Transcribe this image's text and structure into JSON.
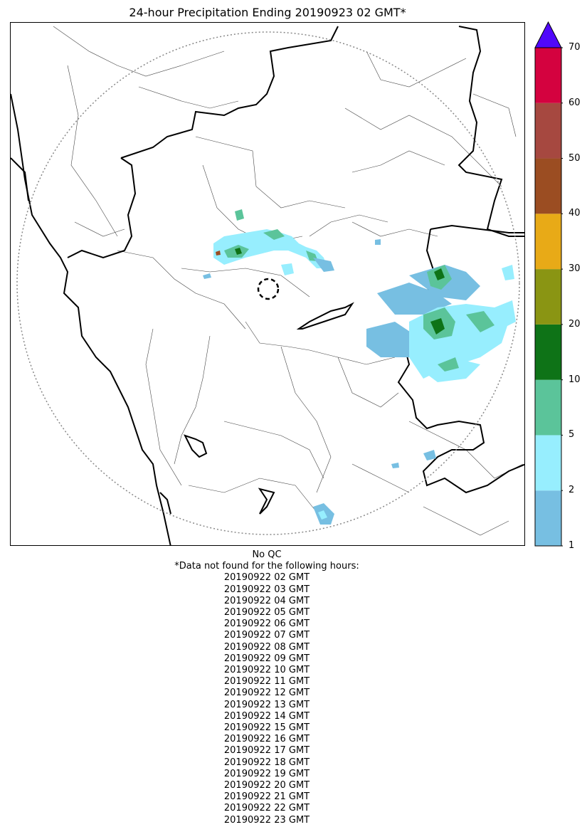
{
  "title": "24-hour Precipitation Ending 20190923 02 GMT*",
  "colorbar": {
    "levels": [
      {
        "value": 1,
        "label": "1",
        "color": "#77bfe2"
      },
      {
        "value": 2,
        "label": "2",
        "color": "#97eefe"
      },
      {
        "value": 5,
        "label": "5",
        "color": "#5bc49a"
      },
      {
        "value": 10,
        "label": "10",
        "color": "#0e7317"
      },
      {
        "value": 20,
        "label": "20",
        "color": "#8a9513"
      },
      {
        "value": 30,
        "label": "30",
        "color": "#e8aa17"
      },
      {
        "value": 40,
        "label": "40",
        "color": "#9b4d22"
      },
      {
        "value": 50,
        "label": "50",
        "color": "#a64840"
      },
      {
        "value": 60,
        "label": "60",
        "color": "#d4023f"
      },
      {
        "value": 70,
        "label": "70",
        "color": null
      }
    ],
    "extend_max_color": "#5008fb"
  },
  "notes": {
    "qc": "No QC",
    "missing_header": "*Data not found for the following hours:",
    "missing_hours": [
      "20190922 02 GMT",
      "20190922 03 GMT",
      "20190922 04 GMT",
      "20190922 05 GMT",
      "20190922 06 GMT",
      "20190922 07 GMT",
      "20190922 08 GMT",
      "20190922 09 GMT",
      "20190922 10 GMT",
      "20190922 11 GMT",
      "20190922 12 GMT",
      "20190922 13 GMT",
      "20190922 14 GMT",
      "20190922 15 GMT",
      "20190922 16 GMT",
      "20190922 17 GMT",
      "20190922 18 GMT",
      "20190922 19 GMT",
      "20190922 20 GMT",
      "20190922 21 GMT",
      "20190922 22 GMT",
      "20190922 23 GMT"
    ]
  },
  "map": {
    "range_ring_color": "#888888",
    "border_color": "#000000",
    "district_color": "#444444"
  }
}
